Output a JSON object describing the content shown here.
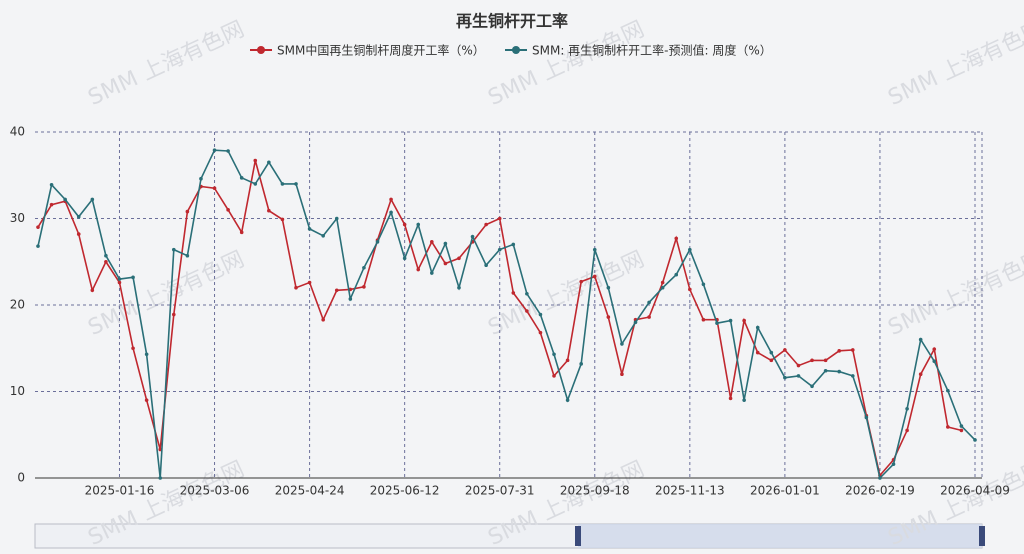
{
  "chart_data": {
    "type": "line",
    "title": "再生铜杆开工率",
    "watermark": "SMM 上海有色网",
    "categories": [
      null,
      null,
      null,
      null,
      null,
      null,
      "2025-01-16",
      null,
      null,
      null,
      null,
      null,
      null,
      "2025-03-06",
      null,
      null,
      null,
      null,
      null,
      null,
      "2025-04-24",
      null,
      null,
      null,
      null,
      null,
      null,
      "2025-06-12",
      null,
      null,
      null,
      null,
      null,
      null,
      "2025-07-31",
      null,
      null,
      null,
      null,
      null,
      null,
      "2025-09-18",
      null,
      null,
      null,
      null,
      null,
      null,
      "2025-11-13",
      null,
      null,
      null,
      null,
      null,
      null,
      "2026-01-01",
      null,
      null,
      null,
      null,
      null,
      null,
      "2026-02-19",
      null,
      null,
      null,
      null,
      null,
      null,
      "2026-04-09"
    ],
    "series": [
      {
        "name": "SMM中国再生铜制杆周度开工率（%）",
        "color": "#c0282f",
        "values": [
          29,
          31.6,
          32,
          28.2,
          21.7,
          25,
          22.6,
          15,
          9,
          3.3,
          18.9,
          30.8,
          33.7,
          33.5,
          31,
          28.4,
          36.7,
          30.9,
          29.9,
          22,
          22.6,
          18.3,
          21.7,
          21.8,
          22.1,
          27.5,
          32.2,
          29.3,
          24.1,
          27.3,
          24.8,
          25.4,
          27.3,
          29.3,
          30,
          21.4,
          19.3,
          16.8,
          11.8,
          13.6,
          22.7,
          23.3,
          18.6,
          12,
          18.3,
          18.6,
          22.6,
          27.7,
          21.8,
          18.3,
          18.3,
          9.2,
          18.2,
          14.5,
          13.6,
          14.8,
          13,
          13.6,
          13.6,
          14.7,
          14.8,
          7.2,
          0.3,
          2.1,
          5.5,
          12,
          14.9,
          5.9,
          5.5,
          null
        ]
      },
      {
        "name": "SMM: 再生铜制杆开工率-预测值: 周度（%）",
        "color": "#2a6f78",
        "values": [
          26.8,
          33.9,
          32.2,
          30.2,
          32.2,
          25.7,
          23,
          23.2,
          14.3,
          0,
          26.4,
          25.7,
          34.6,
          37.9,
          37.8,
          34.7,
          34,
          36.5,
          34,
          34,
          28.8,
          28,
          30,
          20.7,
          24.3,
          27.3,
          30.7,
          25.4,
          29.3,
          23.7,
          27.1,
          22,
          27.9,
          24.6,
          26.4,
          27,
          21.3,
          18.9,
          14.3,
          9,
          13.2,
          26.4,
          22,
          15.5,
          18,
          20.3,
          22,
          23.5,
          26.4,
          22.4,
          17.9,
          18.2,
          9,
          17.4,
          14.5,
          11.6,
          11.8,
          10.6,
          12.4,
          12.3,
          11.8,
          7,
          0,
          1.6,
          8,
          16,
          13.5,
          10.1,
          6,
          4.4
        ]
      }
    ],
    "ylim": [
      0,
      40
    ],
    "yticks": [
      0,
      10,
      20,
      30,
      40
    ],
    "grid": true
  }
}
